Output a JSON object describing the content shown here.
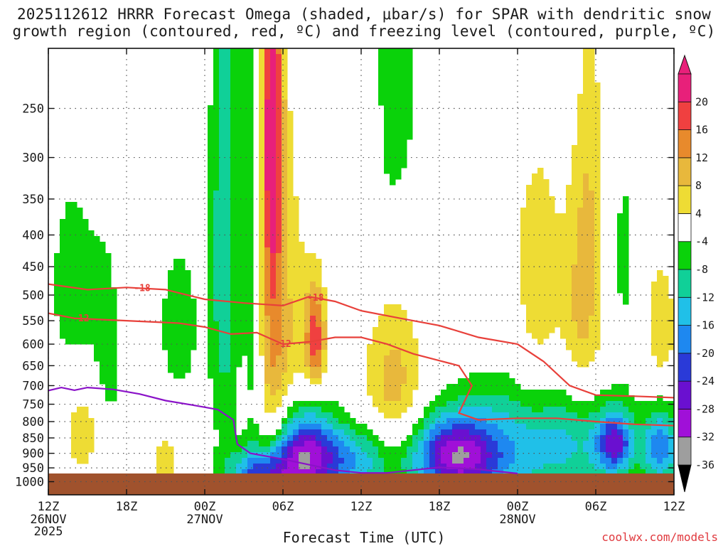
{
  "title_line1": "2025112612 HRRR Forecast Omega (shaded, μbar/s) for SPAR with dendritic snow",
  "title_line2": "growth region (contoured, red, ºC) and freezing level (contoured, purple, ºC)",
  "xlabel": "Forecast Time (UTC)",
  "credit": "coolwx.com/models",
  "colors": {
    "background": "#ffffff",
    "ground": "#a0522d",
    "contour_red": "#e8403a",
    "contour_purple": "#8a12c8",
    "grid": "#555555"
  },
  "chart_data": {
    "type": "heatmap",
    "title": "2025112612 HRRR Forecast Omega (shaded, μbar/s) for SPAR with dendritic snow growth region (contoured, red, ºC) and freezing level (contoured, purple, ºC)",
    "xlabel": "Forecast Time (UTC)",
    "ylabel": "",
    "x_range_hours": [
      0,
      48
    ],
    "x_ticks": [
      {
        "hour": 0,
        "label": "12Z",
        "sub1": "26NOV",
        "sub2": "2025"
      },
      {
        "hour": 6,
        "label": "18Z",
        "sub1": "",
        "sub2": ""
      },
      {
        "hour": 12,
        "label": "00Z",
        "sub1": "27NOV",
        "sub2": ""
      },
      {
        "hour": 18,
        "label": "06Z",
        "sub1": "",
        "sub2": ""
      },
      {
        "hour": 24,
        "label": "12Z",
        "sub1": "",
        "sub2": ""
      },
      {
        "hour": 30,
        "label": "18Z",
        "sub1": "",
        "sub2": ""
      },
      {
        "hour": 36,
        "label": "00Z",
        "sub1": "28NOV",
        "sub2": ""
      },
      {
        "hour": 42,
        "label": "06Z",
        "sub1": "",
        "sub2": ""
      },
      {
        "hour": 48,
        "label": "12Z",
        "sub1": "",
        "sub2": ""
      }
    ],
    "y_scale": "log-pressure",
    "y_range_hpa": [
      200,
      1050
    ],
    "y_ticks": [
      250,
      300,
      350,
      400,
      450,
      500,
      550,
      600,
      650,
      700,
      750,
      800,
      850,
      900,
      950,
      1000
    ],
    "grid": true,
    "surface_hpa": 970,
    "colorbar": {
      "levels": [
        -36,
        -32,
        -28,
        -24,
        -20,
        -16,
        -12,
        -8,
        -4,
        4,
        8,
        12,
        16,
        20
      ],
      "labels": [
        "-36",
        "-32",
        "-28",
        "-24",
        "-20",
        "-16",
        "-12",
        "-8",
        "-4",
        "4",
        "8",
        "12",
        "16",
        "20"
      ],
      "colors": [
        "#9e9e9e",
        "#a010d8",
        "#6a10d0",
        "#2a3ad8",
        "#1e88f0",
        "#20c0e8",
        "#10d098",
        "#0ad20a",
        "#ffffff",
        "#eedc34",
        "#e8b83c",
        "#e88a2c",
        "#f04040",
        "#e8207a"
      ]
    },
    "omega_features": [
      {
        "hour": 1.8,
        "p": 480,
        "v": -7,
        "sh": 1.2,
        "sp": 120
      },
      {
        "hour": 4.5,
        "p": 730,
        "v": -6,
        "sh": 1.0,
        "sp": 300
      },
      {
        "hour": 10,
        "p": 560,
        "v": -6,
        "sh": 1.3,
        "sp": 140
      },
      {
        "hour": 13.5,
        "p": 420,
        "v": -11,
        "sh": 0.8,
        "sp": 320
      },
      {
        "hour": 15.8,
        "p": 420,
        "v": -9,
        "sh": 0.6,
        "sp": 320
      },
      {
        "hour": 16.5,
        "p": 980,
        "v": -22,
        "sh": 1.8,
        "sp": 70
      },
      {
        "hour": 19.5,
        "p": 900,
        "v": -26,
        "sh": 1.6,
        "sp": 110
      },
      {
        "hour": 23,
        "p": 930,
        "v": -16,
        "sh": 2.5,
        "sp": 90
      },
      {
        "hour": 31,
        "p": 910,
        "v": -25,
        "sh": 2.2,
        "sp": 90
      },
      {
        "hour": 34,
        "p": 900,
        "v": -12,
        "sh": 3.0,
        "sp": 150
      },
      {
        "hour": 40,
        "p": 860,
        "v": -12,
        "sh": 3.0,
        "sp": 130
      },
      {
        "hour": 43.5,
        "p": 870,
        "v": -21,
        "sh": 1.0,
        "sp": 70
      },
      {
        "hour": 47,
        "p": 880,
        "v": -18,
        "sh": 1.0,
        "sp": 90
      },
      {
        "hour": 26.5,
        "p": 240,
        "v": -6,
        "sh": 1.5,
        "sp": 110
      },
      {
        "hour": 37,
        "p": 225,
        "v": -6,
        "sh": 2.0,
        "sp": 60
      },
      {
        "hour": 44,
        "p": 430,
        "v": -5,
        "sh": 1.0,
        "sp": 160
      },
      {
        "hour": 17,
        "p": 420,
        "v": 12,
        "sh": 0.8,
        "sp": 320
      },
      {
        "hour": 17.2,
        "p": 270,
        "v": 17,
        "sh": 0.45,
        "sp": 110
      },
      {
        "hour": 20.5,
        "p": 590,
        "v": 17,
        "sh": 0.55,
        "sp": 80
      },
      {
        "hour": 18.5,
        "p": 620,
        "v": 7,
        "sh": 1.3,
        "sp": 240
      },
      {
        "hour": 26.5,
        "p": 700,
        "v": 10,
        "sh": 1.6,
        "sp": 140
      },
      {
        "hour": 3,
        "p": 840,
        "v": 8,
        "sh": 1.2,
        "sp": 100
      },
      {
        "hour": 9,
        "p": 930,
        "v": 8,
        "sh": 0.6,
        "sp": 60
      },
      {
        "hour": 37.5,
        "p": 450,
        "v": 7,
        "sh": 1.2,
        "sp": 230
      },
      {
        "hour": 41,
        "p": 560,
        "v": 9,
        "sh": 1.2,
        "sp": 150
      },
      {
        "hour": 41.5,
        "p": 310,
        "v": 6,
        "sh": 1.0,
        "sp": 130
      },
      {
        "hour": 47,
        "p": 560,
        "v": 8,
        "sh": 0.8,
        "sp": 90
      },
      {
        "hour": 24.5,
        "p": 290,
        "v": 5,
        "sh": 0.6,
        "sp": 50
      }
    ],
    "contours": [
      {
        "label": "-18",
        "color": "red",
        "label_pos_hour": [
          7.2,
          20.5
        ],
        "points": [
          [
            0,
            480
          ],
          [
            3,
            490
          ],
          [
            6,
            486
          ],
          [
            9,
            490
          ],
          [
            12,
            508
          ],
          [
            15,
            515
          ],
          [
            18,
            520
          ],
          [
            20,
            503
          ],
          [
            22,
            512
          ],
          [
            24,
            530
          ],
          [
            27,
            545
          ],
          [
            30,
            560
          ],
          [
            33,
            585
          ],
          [
            36,
            600
          ],
          [
            38,
            640
          ],
          [
            40,
            700
          ],
          [
            42,
            725
          ],
          [
            45,
            728
          ],
          [
            48,
            732
          ]
        ]
      },
      {
        "label": "-12",
        "color": "red",
        "label_pos_hour": [
          2.5,
          18
        ],
        "points": [
          [
            0,
            535
          ],
          [
            2,
            545
          ],
          [
            6,
            550
          ],
          [
            10,
            555
          ],
          [
            12,
            563
          ],
          [
            14,
            578
          ],
          [
            16,
            575
          ],
          [
            18,
            600
          ],
          [
            20,
            595
          ],
          [
            22,
            585
          ],
          [
            24,
            585
          ],
          [
            26,
            600
          ],
          [
            28,
            622
          ],
          [
            31.5,
            650
          ],
          [
            32.5,
            700
          ],
          [
            31.5,
            775
          ],
          [
            33,
            795
          ],
          [
            36,
            790
          ],
          [
            39,
            790
          ],
          [
            42,
            800
          ],
          [
            45,
            808
          ],
          [
            48,
            812
          ]
        ]
      },
      {
        "label": "",
        "color": "purple",
        "label_pos_hour": [],
        "points": [
          [
            0,
            713
          ],
          [
            1,
            705
          ],
          [
            2,
            712
          ],
          [
            3,
            705
          ],
          [
            5,
            710
          ],
          [
            7,
            722
          ],
          [
            9,
            740
          ],
          [
            11,
            752
          ],
          [
            13,
            765
          ],
          [
            14.2,
            795
          ],
          [
            14.5,
            870
          ],
          [
            15.5,
            900
          ],
          [
            18,
            920
          ],
          [
            22,
            958
          ],
          [
            24,
            968
          ],
          [
            26,
            968
          ],
          [
            30,
            948
          ],
          [
            33,
            955
          ],
          [
            36,
            970
          ]
        ]
      }
    ]
  }
}
